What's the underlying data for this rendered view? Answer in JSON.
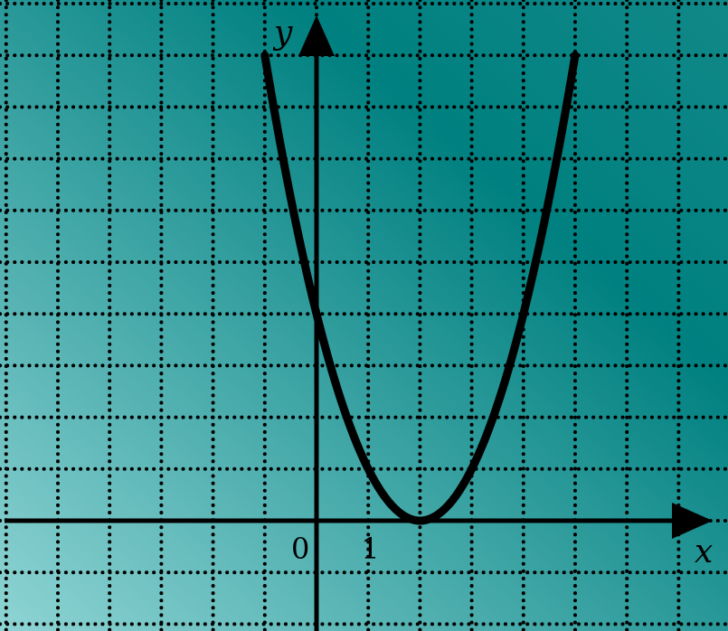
{
  "chart_data": {
    "type": "line",
    "title": "",
    "xlabel": "x",
    "ylabel": "y",
    "origin_label": "0",
    "x_tick_labels": [
      "1"
    ],
    "xlim": [
      -6,
      7.3
    ],
    "ylim": [
      -2,
      10
    ],
    "grid": true,
    "grid_style": "dotted",
    "series": [
      {
        "name": "",
        "function": "(x-2)^2",
        "x": [
          -1,
          -0.5,
          0,
          0.5,
          1,
          1.5,
          2,
          2.5,
          3,
          3.5,
          4,
          4.5,
          5
        ],
        "y": [
          9,
          6.25,
          4,
          2.25,
          1,
          0.25,
          0,
          0.25,
          1,
          2.25,
          4,
          6.25,
          9
        ]
      }
    ],
    "colors": {
      "background_light": "#8fd4d4",
      "background_dark": "#008080",
      "curve": "#000000",
      "axes": "#000000",
      "grid": "#000000"
    }
  }
}
